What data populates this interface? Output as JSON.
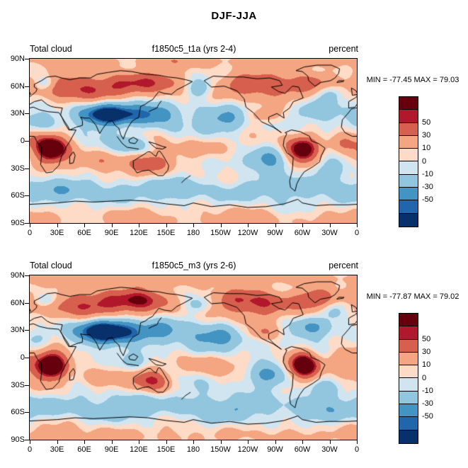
{
  "figure": {
    "title": "DJF-JJA"
  },
  "panels": [
    {
      "left_label": "Total cloud",
      "center_title": "f1850c5_t1a (yrs 2-4)",
      "right_label": "percent",
      "minmax_text": "MIN = -77.45 MAX = 79.03"
    },
    {
      "left_label": "Total cloud",
      "center_title": "f1850c5_m3 (yrs 2-6)",
      "right_label": "percent",
      "minmax_text": "MIN = -77.87 MAX = 79.02"
    }
  ],
  "chart_data": [
    {
      "type": "heatmap",
      "subtype": "filled-contour-world-map",
      "title": "f1850c5_t1a (yrs 2-4)",
      "variable": "Total cloud",
      "units": "percent",
      "season_diff": "DJF-JJA",
      "min": -77.45,
      "max": 79.03,
      "lat_ticks": [
        "90N",
        "60N",
        "30N",
        "0",
        "30S",
        "60S",
        "90S"
      ],
      "lon_ticks": [
        "0",
        "30E",
        "60E",
        "90E",
        "120E",
        "150E",
        "180",
        "150W",
        "120W",
        "90W",
        "60W",
        "30W",
        "0"
      ],
      "colorbar": {
        "tick_labels": [
          "50",
          "30",
          "10",
          "0",
          "-10",
          "-30",
          "-50"
        ],
        "levels": [
          -60,
          -50,
          -30,
          -10,
          0,
          10,
          30,
          50,
          60
        ],
        "colors_low_to_high": [
          "#08306b",
          "#2166ac",
          "#4393c3",
          "#92c5de",
          "#d1e5f0",
          "#fddbc7",
          "#f4a582",
          "#d6604d",
          "#b2182b",
          "#67000d"
        ]
      },
      "render": {
        "phase": 0.3,
        "scale": 1.0
      }
    },
    {
      "type": "heatmap",
      "subtype": "filled-contour-world-map",
      "title": "f1850c5_m3 (yrs 2-6)",
      "variable": "Total cloud",
      "units": "percent",
      "season_diff": "DJF-JJA",
      "min": -77.87,
      "max": 79.02,
      "lat_ticks": [
        "90N",
        "60N",
        "30N",
        "0",
        "30S",
        "60S",
        "90S"
      ],
      "lon_ticks": [
        "0",
        "30E",
        "60E",
        "90E",
        "120E",
        "150E",
        "180",
        "150W",
        "120W",
        "90W",
        "60W",
        "30W",
        "0"
      ],
      "colorbar": {
        "tick_labels": [
          "50",
          "30",
          "10",
          "0",
          "-10",
          "-30",
          "-50"
        ],
        "levels": [
          -60,
          -50,
          -30,
          -10,
          0,
          10,
          30,
          50,
          60
        ],
        "colors_low_to_high": [
          "#08306b",
          "#2166ac",
          "#4393c3",
          "#92c5de",
          "#d1e5f0",
          "#fddbc7",
          "#f4a582",
          "#d6604d",
          "#b2182b",
          "#67000d"
        ]
      },
      "render": {
        "phase": 2.4,
        "scale": 1.05
      }
    }
  ]
}
